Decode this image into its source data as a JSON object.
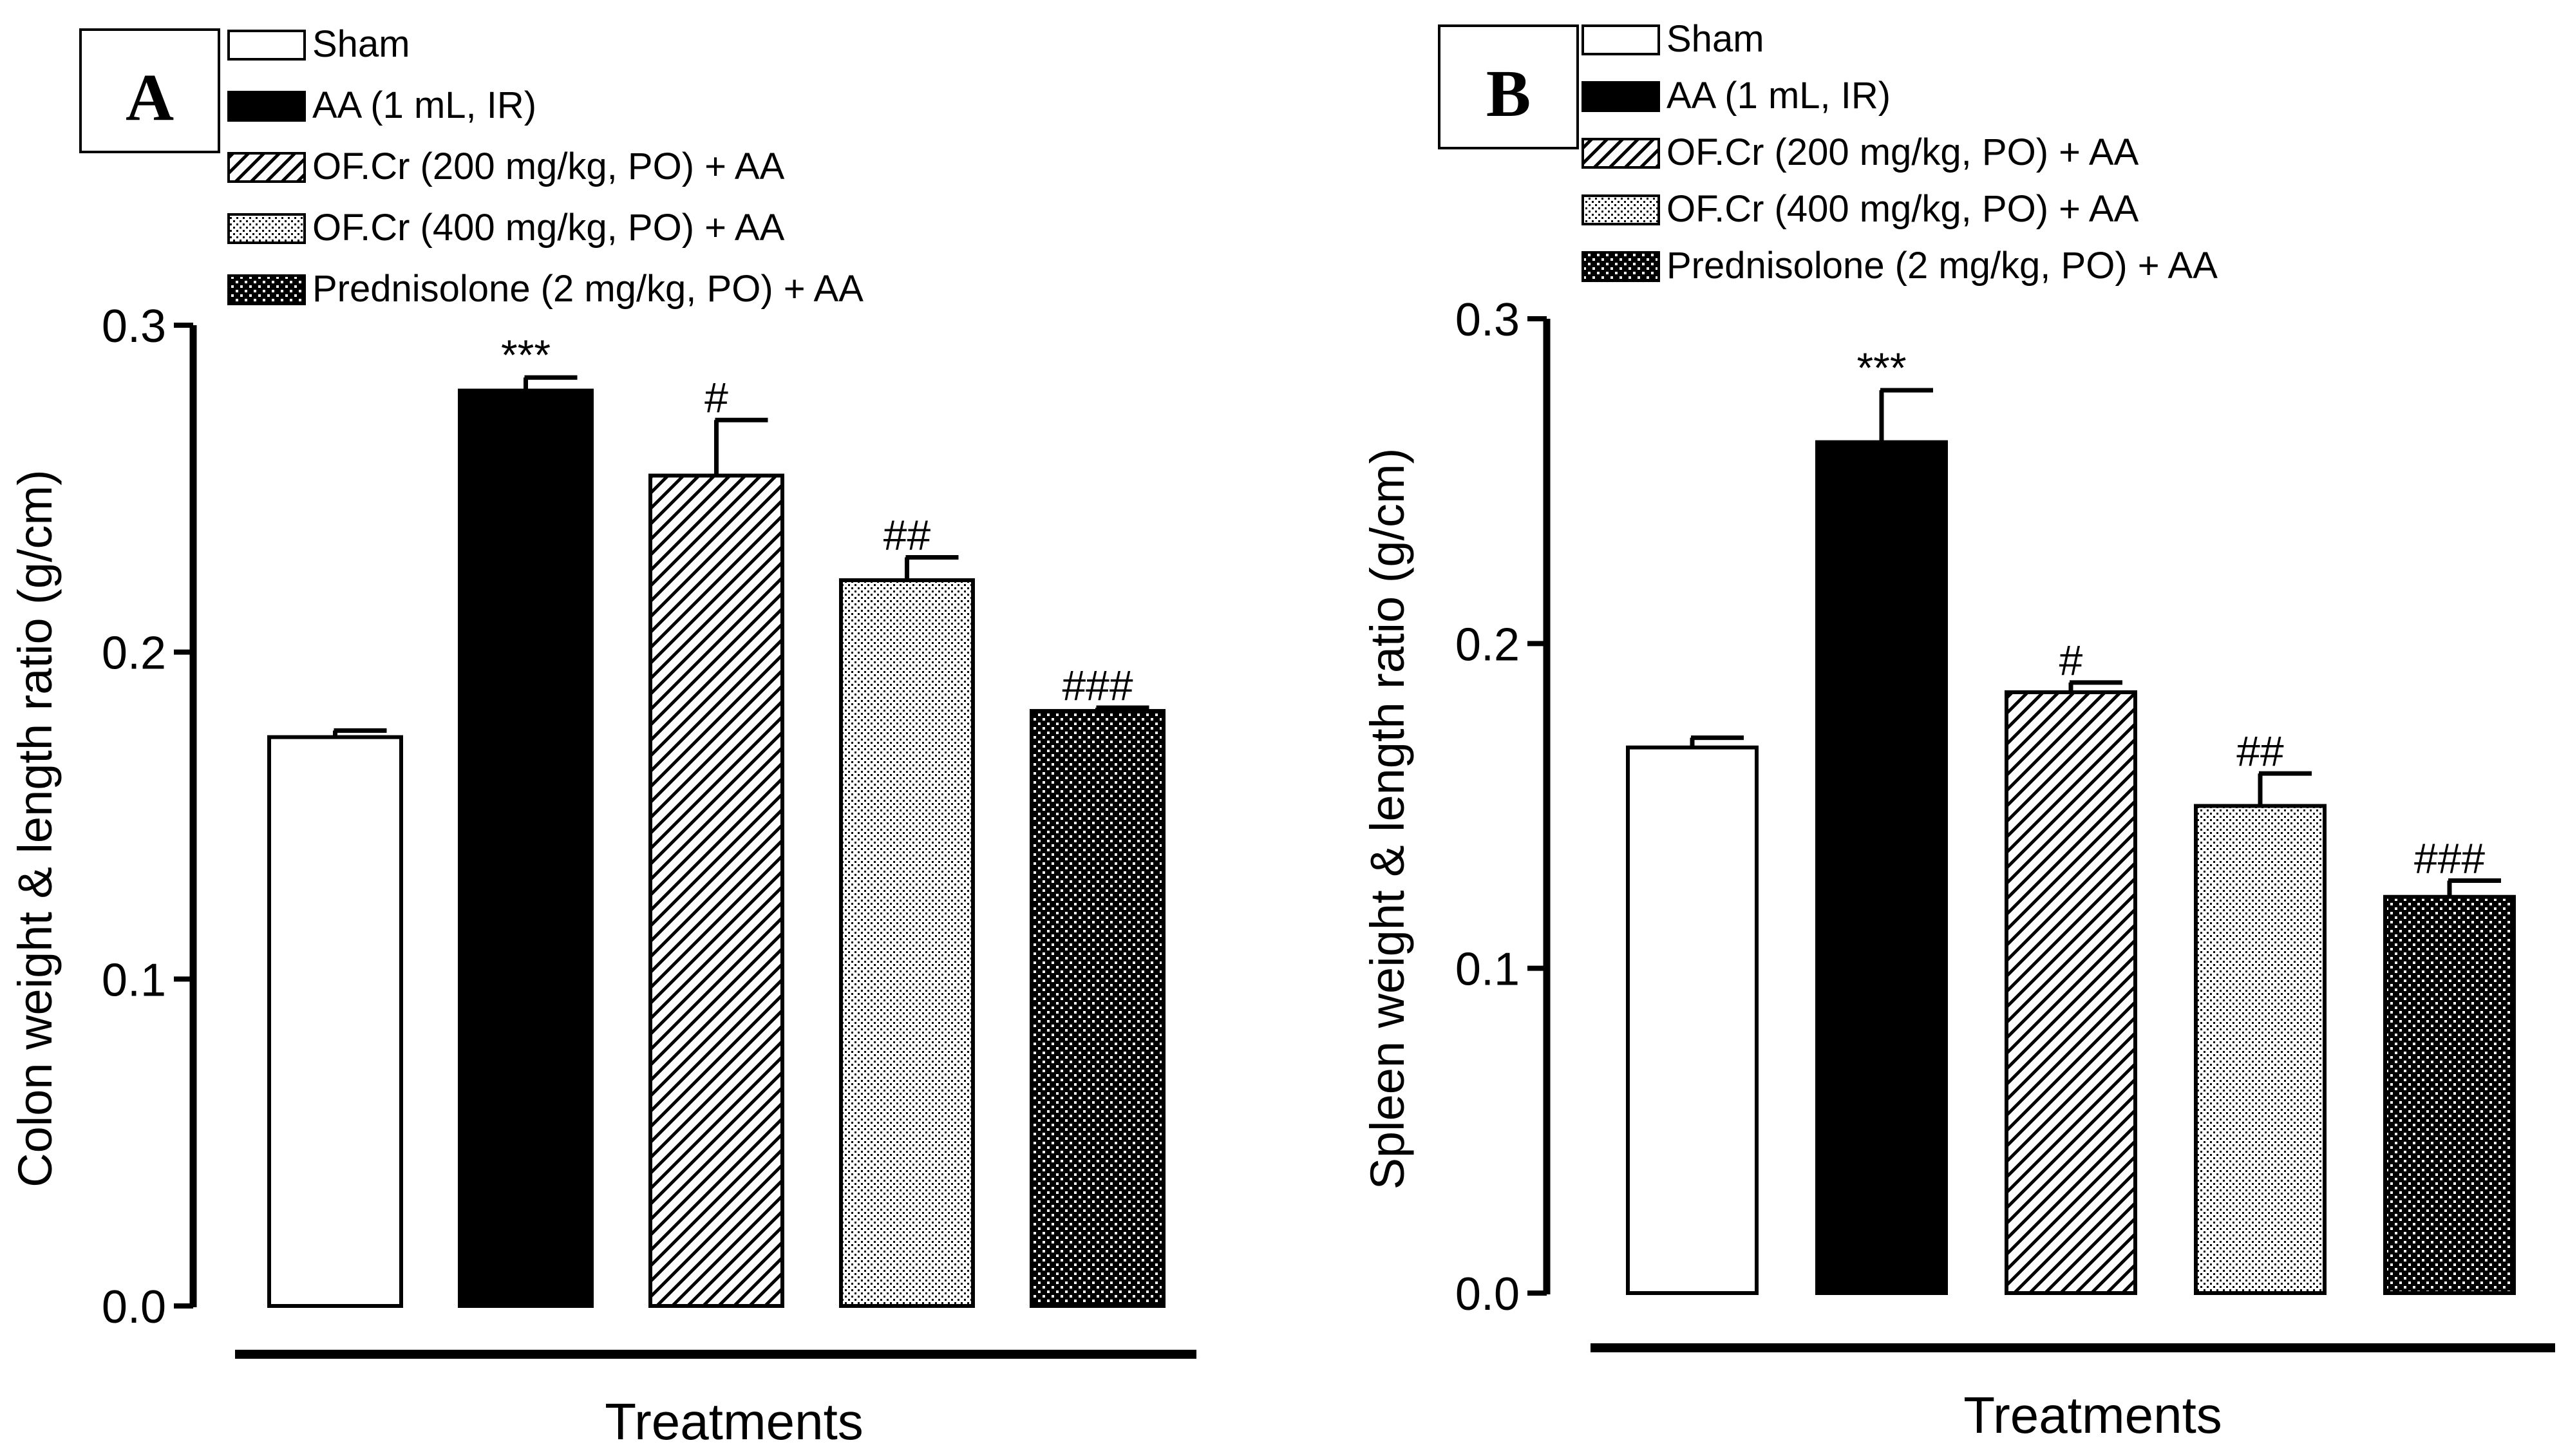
{
  "chart_data": [
    {
      "type": "bar",
      "panel_label": "A",
      "ylabel": "Colon weight & length ratio (g/cm)",
      "xlabel": "Treatments",
      "ylim": [
        0,
        0.3
      ],
      "yticks": [
        "0.0",
        "0.1",
        "0.2",
        "0.3"
      ],
      "legend_position": "top-left",
      "legend": [
        "Sham",
        "AA (1 mL, IR)",
        "OF.Cr (200 mg/kg, PO) + AA",
        "OF.Cr (400 mg/kg, PO) + AA",
        "Prednisolone (2 mg/kg, PO) + AA"
      ],
      "values": [
        0.174,
        0.28,
        0.254,
        0.222,
        0.182
      ],
      "errors": [
        0.002,
        0.004,
        0.017,
        0.007,
        0.001
      ],
      "annotations": [
        "",
        "***",
        "#",
        "##",
        "###"
      ]
    },
    {
      "type": "bar",
      "panel_label": "B",
      "ylabel": "Spleen weight & length ratio (g/cm)",
      "xlabel": "Treatments",
      "ylim": [
        0,
        0.3
      ],
      "yticks": [
        "0.0",
        "0.1",
        "0.2",
        "0.3"
      ],
      "legend_position": "top-left",
      "legend": [
        "Sham",
        "AA (1 mL, IR)",
        "OF.Cr (200 mg/kg, PO) + AA",
        "OF.Cr (400 mg/kg, PO) + AA",
        "Prednisolone (2 mg/kg, PO) + AA"
      ],
      "values": [
        0.168,
        0.262,
        0.185,
        0.15,
        0.122
      ],
      "errors": [
        0.003,
        0.016,
        0.003,
        0.01,
        0.005
      ],
      "annotations": [
        "",
        "***",
        "#",
        "##",
        "###"
      ]
    }
  ]
}
